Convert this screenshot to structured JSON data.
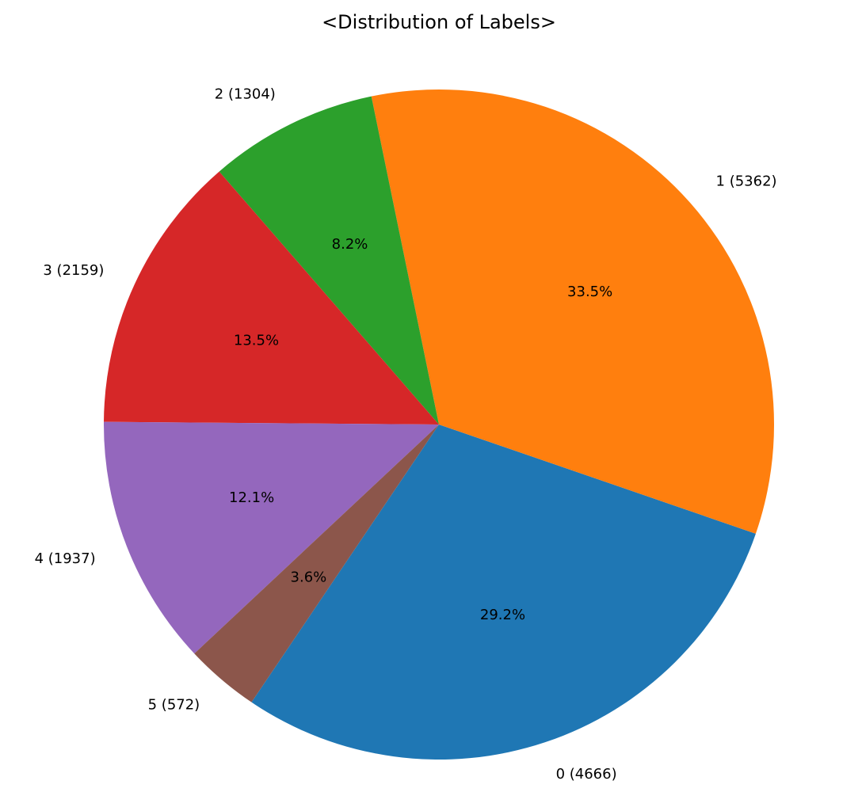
{
  "chart_data": {
    "type": "pie",
    "title": "<Distribution of Labels>",
    "start_angle_deg": 236,
    "direction": "counterclockwise",
    "slices": [
      {
        "label": "0 (4666)",
        "category": "0",
        "value": 4666,
        "percent_label": "29.2%",
        "color": "#1f77b4"
      },
      {
        "label": "1 (5362)",
        "category": "1",
        "value": 5362,
        "percent_label": "33.5%",
        "color": "#ff7f0e"
      },
      {
        "label": "2 (1304)",
        "category": "2",
        "value": 1304,
        "percent_label": "8.2%",
        "color": "#2ca02c"
      },
      {
        "label": "3 (2159)",
        "category": "3",
        "value": 2159,
        "percent_label": "13.5%",
        "color": "#d62728"
      },
      {
        "label": "4 (1937)",
        "category": "4",
        "value": 1937,
        "percent_label": "12.1%",
        "color": "#9467bd"
      },
      {
        "label": "5 (572)",
        "category": "5",
        "value": 572,
        "percent_label": "3.6%",
        "color": "#8c564b"
      }
    ]
  }
}
